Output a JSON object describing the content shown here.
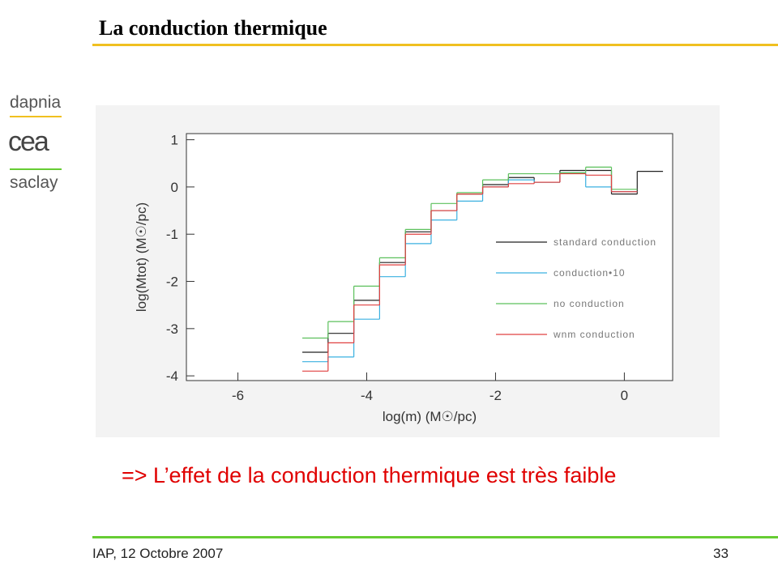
{
  "header": {
    "title": "La conduction thermique"
  },
  "logo": {
    "top": "dapnia",
    "middle": "cea",
    "bottom": "saclay"
  },
  "chart_data": {
    "type": "histogram",
    "xlabel": "log(m) (M☉/pc)",
    "ylabel": "log(Mtot) (M☉/pc)",
    "bins": [
      -5,
      -4.6,
      -4.2,
      -3.8,
      -3.4,
      -3.0,
      -2.6,
      -2.2,
      -1.8,
      -1.4,
      -1.0,
      -0.6,
      -0.2,
      0.2,
      0.6
    ],
    "series": [
      {
        "name": "standard conduction",
        "color": "#222222",
        "values": [
          -3.5,
          -3.1,
          -2.4,
          -1.6,
          -0.95,
          -0.5,
          -0.15,
          0.05,
          0.2,
          0.1,
          0.35,
          0.35,
          -0.15,
          0.33
        ]
      },
      {
        "name": "conduction•10",
        "color": "#3ab0e0",
        "values": [
          -3.7,
          -3.6,
          -2.8,
          -1.9,
          -1.2,
          -0.7,
          -0.3,
          0.0,
          0.15,
          0.1,
          0.3,
          0.0,
          -0.1,
          null
        ]
      },
      {
        "name": "no conduction",
        "color": "#5cc05c",
        "values": [
          -3.2,
          -2.85,
          -2.1,
          -1.5,
          -0.9,
          -0.35,
          -0.12,
          0.15,
          0.28,
          0.28,
          0.3,
          0.42,
          -0.05,
          null
        ]
      },
      {
        "name": "wnm conduction",
        "color": "#e04040",
        "values": [
          -3.9,
          -3.3,
          -2.5,
          -1.65,
          -1.0,
          -0.5,
          -0.15,
          0.0,
          0.07,
          0.1,
          0.28,
          0.25,
          -0.1,
          null
        ]
      }
    ],
    "xlim": [
      -6.8,
      0.75
    ],
    "ylim": [
      -4.1,
      1.13
    ],
    "xticks": [
      -6,
      -4,
      -2,
      0
    ],
    "yticks": [
      1,
      0,
      -1,
      -2,
      -3,
      -4
    ],
    "legend": "right"
  },
  "statement": "=> L’effet de la conduction thermique est très faible",
  "footer": {
    "left": "IAP, 12 Octobre 2007",
    "page": "33"
  }
}
